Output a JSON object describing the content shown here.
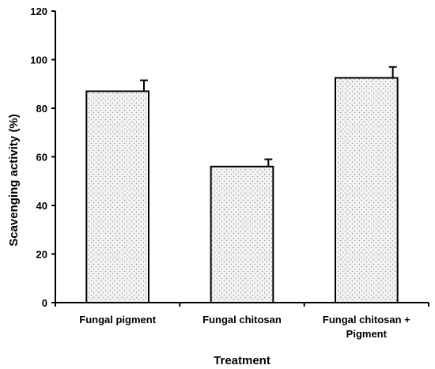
{
  "chart_data": {
    "type": "bar",
    "title": "",
    "xlabel": "Treatment",
    "ylabel": "Scavenging activity (%)",
    "ylim": [
      0,
      120
    ],
    "yticks": [
      0,
      20,
      40,
      60,
      80,
      100,
      120
    ],
    "grid": false,
    "categories": [
      [
        "Fungal pigment"
      ],
      [
        "Fungal chitosan"
      ],
      [
        "Fungal chitosan +",
        "Pigment"
      ]
    ],
    "values": [
      87,
      56,
      92.5
    ],
    "errors": [
      4.5,
      3,
      4.5
    ],
    "bar_fill": "#e6e6e6",
    "bar_stroke": "#000000"
  }
}
